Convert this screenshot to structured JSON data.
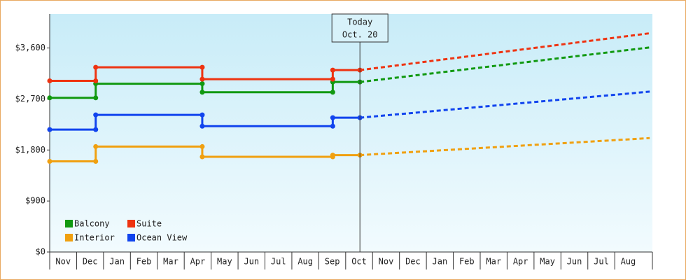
{
  "chart_data": {
    "type": "line",
    "categories": [
      "Nov",
      "Dec",
      "Jan",
      "Feb",
      "Mar",
      "Apr",
      "May",
      "Jun",
      "Jul",
      "Aug",
      "Sep",
      "Oct",
      "Nov",
      "Dec",
      "Jan",
      "Feb",
      "Mar",
      "Apr",
      "May",
      "Jun",
      "Jul",
      "Aug"
    ],
    "xlim": [
      0,
      22.4
    ],
    "ylim": [
      0,
      4200
    ],
    "yticks": [
      {
        "value": 0,
        "label": "$0"
      },
      {
        "value": 900,
        "label": "$900"
      },
      {
        "value": 1800,
        "label": "$1,800"
      },
      {
        "value": 2700,
        "label": "$2,700"
      },
      {
        "value": 3600,
        "label": "$3,600"
      }
    ],
    "today": {
      "x": 11.53,
      "label": [
        "Today",
        "Oct. 20"
      ]
    },
    "series": [
      {
        "name": "Balcony",
        "color": "#119911",
        "x": [
          0,
          1.71,
          1.71,
          5.67,
          5.67,
          10.52,
          10.52,
          11.53
        ],
        "values": [
          2720,
          2720,
          2970,
          2970,
          2820,
          2820,
          3000,
          3000
        ],
        "forecast_x": [
          11.53,
          22.3
        ],
        "forecast_values": [
          3000,
          3610
        ]
      },
      {
        "name": "Suite",
        "color": "#ee3311",
        "x": [
          0,
          1.71,
          1.71,
          5.67,
          5.67,
          10.52,
          10.52,
          11.53
        ],
        "values": [
          3020,
          3020,
          3260,
          3260,
          3050,
          3050,
          3210,
          3210
        ],
        "forecast_x": [
          11.53,
          22.3
        ],
        "forecast_values": [
          3210,
          3860
        ]
      },
      {
        "name": "Interior",
        "color": "#f0a010",
        "x": [
          0,
          1.71,
          1.71,
          5.67,
          5.67,
          10.52,
          10.52,
          11.53
        ],
        "values": [
          1600,
          1600,
          1860,
          1860,
          1680,
          1680,
          1710,
          1710
        ],
        "forecast_x": [
          11.53,
          22.3
        ],
        "forecast_values": [
          1710,
          2010
        ]
      },
      {
        "name": "Ocean View",
        "color": "#1144ee",
        "x": [
          0,
          1.71,
          1.71,
          5.67,
          5.67,
          10.52,
          10.52,
          11.53
        ],
        "values": [
          2160,
          2160,
          2420,
          2420,
          2220,
          2220,
          2370,
          2370
        ],
        "forecast_x": [
          11.53,
          22.3
        ],
        "forecast_values": [
          2370,
          2830
        ]
      }
    ]
  }
}
